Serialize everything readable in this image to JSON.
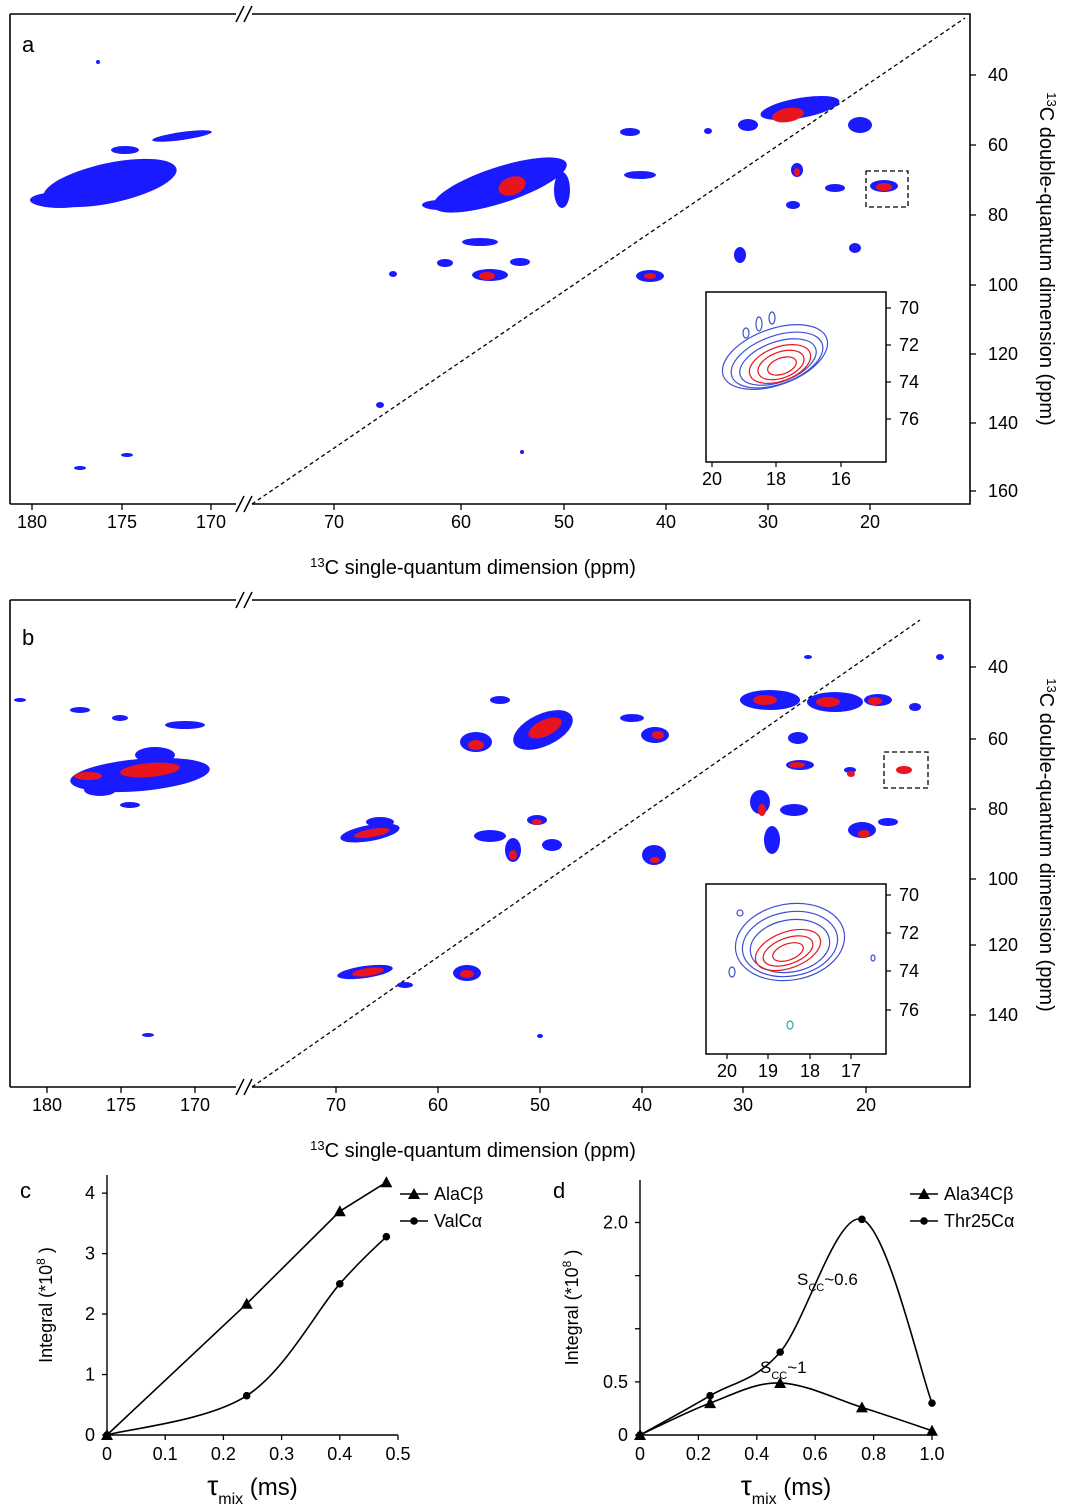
{
  "panels": {
    "a": {
      "letter": "a",
      "x_label_main": "C single-quantum dimension (ppm)",
      "x_label_sup": "13",
      "y_label_main": "C double-quantum dimension (ppm)",
      "y_label_sup": "13",
      "left_ticks": [
        "180",
        "175",
        "170"
      ],
      "right_ticks": [
        "70",
        "60",
        "50",
        "40",
        "30",
        "20"
      ],
      "y_ticks": [
        "40",
        "60",
        "80",
        "100",
        "120",
        "140",
        "160"
      ],
      "inset": {
        "x_ticks": [
          "20",
          "18",
          "16"
        ],
        "y_ticks": [
          "70",
          "72",
          "74",
          "76"
        ]
      }
    },
    "b": {
      "letter": "b",
      "x_label_main": "C single-quantum dimension (ppm)",
      "x_label_sup": "13",
      "y_label_main": "C double-quantum dimension (ppm)",
      "y_label_sup": "13",
      "left_ticks": [
        "180",
        "175",
        "170"
      ],
      "right_ticks": [
        "70",
        "60",
        "50",
        "40",
        "30",
        "20"
      ],
      "y_ticks": [
        "40",
        "60",
        "80",
        "100",
        "120",
        "140"
      ],
      "inset": {
        "x_ticks": [
          "20",
          "19",
          "18",
          "17"
        ],
        "y_ticks": [
          "70",
          "72",
          "74",
          "76"
        ]
      }
    }
  },
  "chart_data": [
    {
      "panel": "c",
      "type": "line",
      "xlabel": "τmix (ms)",
      "xlabel_main": "τ",
      "xlabel_sub": "mix",
      "xlabel_unit": " (ms)",
      "ylabel": "Integral (*10^8 )",
      "ylabel_main": "Integral (*10",
      "ylabel_sup": "8",
      "ylabel_end": " )",
      "xlim": [
        0,
        0.5
      ],
      "ylim": [
        0,
        4.3
      ],
      "x_ticks": [
        "0",
        "0.1",
        "0.2",
        "0.3",
        "0.4",
        "0.5"
      ],
      "y_ticks": [
        "0",
        "1",
        "2",
        "3",
        "4"
      ],
      "legend_position": "top-right",
      "series": [
        {
          "name": "AlaCβ",
          "marker": "triangle",
          "x": [
            0,
            0.24,
            0.4,
            0.48
          ],
          "y": [
            0,
            2.17,
            3.7,
            4.18
          ]
        },
        {
          "name": "ValCα",
          "marker": "circle",
          "x": [
            0,
            0.24,
            0.4,
            0.48
          ],
          "y": [
            0,
            0.65,
            2.5,
            3.28
          ]
        }
      ]
    },
    {
      "panel": "d",
      "type": "line",
      "xlabel": "τmix (ms)",
      "xlabel_main": "τ",
      "xlabel_sub": "mix",
      "xlabel_unit": " (ms)",
      "ylabel": "Integral (*10^8 )",
      "ylabel_main": "Integral (*10",
      "ylabel_sup": "8",
      "ylabel_end": " )",
      "xlim": [
        0,
        1.0
      ],
      "ylim": [
        0,
        2.4
      ],
      "x_ticks": [
        "0",
        "0.2",
        "0.4",
        "0.6",
        "0.8",
        "1.0"
      ],
      "y_ticks": [
        "0",
        "0.5",
        "1.0",
        "1.5",
        "2.0"
      ],
      "y_tick_labels_shown": [
        "0",
        "0.5",
        "",
        "",
        "2.0"
      ],
      "legend_position": "top-right",
      "annotations": [
        {
          "text_main": "S",
          "text_sub": "CC",
          "text_end": "~0.6"
        },
        {
          "text_main": "S",
          "text_sub": "CC",
          "text_end": "~1"
        }
      ],
      "series": [
        {
          "name": "Ala34Cβ",
          "marker": "triangle",
          "x": [
            0,
            0.24,
            0.48,
            0.76,
            1.0
          ],
          "y": [
            0,
            0.3,
            0.49,
            0.26,
            0.04
          ]
        },
        {
          "name": "Thr25Cα",
          "marker": "circle",
          "x": [
            0,
            0.24,
            0.48,
            0.76,
            1.0
          ],
          "y": [
            0,
            0.37,
            0.78,
            2.03,
            0.3
          ]
        }
      ]
    }
  ],
  "colors": {
    "contour_outer": "#1a1aff",
    "contour_inner": "#e8141e",
    "inset_outer": "#3d4fd6",
    "diagonal": "#000000",
    "extra_peak": "#2aa6a0"
  }
}
